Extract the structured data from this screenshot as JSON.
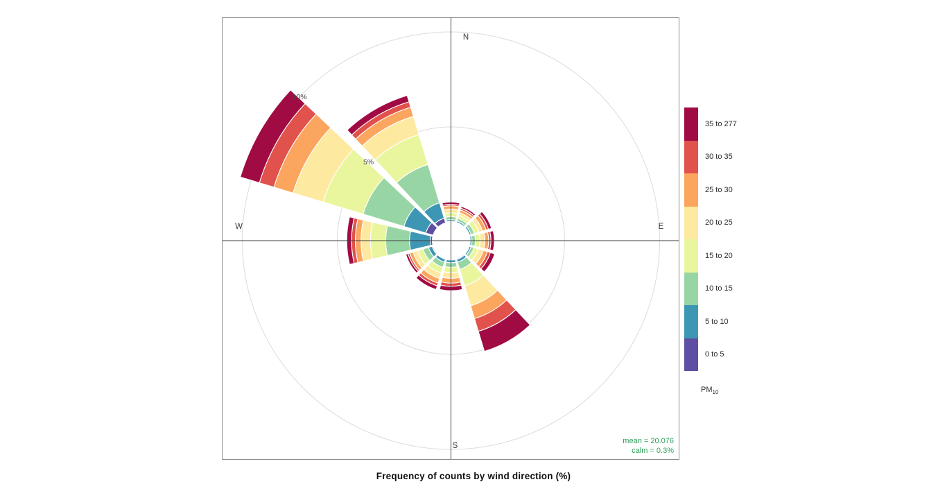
{
  "title": "Frequency of counts by wind direction (%)",
  "panel": {
    "compass_labels": {
      "n": "N",
      "e": "E",
      "s": "S",
      "w": "W"
    },
    "ring_labels": [
      "5%",
      "10%"
    ],
    "stats": {
      "mean_label": "mean = 20.076",
      "calm_label": "calm = 0.3%",
      "text_color": "#2da05c"
    }
  },
  "legend": {
    "title_main": "PM",
    "title_sub": "10",
    "entries_top_down": [
      {
        "label": "35 to 277",
        "color": "#a10b44"
      },
      {
        "label": "30 to 35",
        "color": "#e0524b"
      },
      {
        "label": "25 to 30",
        "color": "#fba55e"
      },
      {
        "label": "20 to 25",
        "color": "#fee9a0"
      },
      {
        "label": "15 to 20",
        "color": "#e9f69e"
      },
      {
        "label": "10 to 15",
        "color": "#98d5a4"
      },
      {
        "label": "5 to 10",
        "color": "#3e96b5"
      },
      {
        "label": "0 to 5",
        "color": "#5e4fa2"
      }
    ]
  },
  "chart_data": {
    "type": "windrose",
    "subtype": "stacked polar frequency rose (openair style)",
    "title": "Frequency of counts by wind direction (%)",
    "pollutant": "PM10",
    "units": "% frequency of counts by wind direction",
    "grid": {
      "rings_percent": [
        5,
        10
      ],
      "ring_label_bearing_deg": 313.5,
      "gridlines_on": true
    },
    "sector_width_deg": 30,
    "bins": [
      {
        "range": "0 to 5",
        "color": "#5e4fa2"
      },
      {
        "range": "5 to 10",
        "color": "#3e96b5"
      },
      {
        "range": "10 to 15",
        "color": "#98d5a4"
      },
      {
        "range": "15 to 20",
        "color": "#e9f69e"
      },
      {
        "range": "20 to 25",
        "color": "#fee9a0"
      },
      {
        "range": "25 to 30",
        "color": "#fba55e"
      },
      {
        "range": "30 to 35",
        "color": "#e0524b"
      },
      {
        "range": "35 to 277",
        "color": "#a10b44"
      }
    ],
    "sectors": [
      {
        "dir": "N",
        "bearing_deg": 0,
        "cum_percent": [
          0.03,
          0.12,
          0.28,
          0.48,
          0.68,
          0.85,
          0.93,
          1.05
        ]
      },
      {
        "dir": "NNE",
        "bearing_deg": 30,
        "cum_percent": [
          0.02,
          0.1,
          0.24,
          0.4,
          0.55,
          0.7,
          0.8,
          0.9
        ]
      },
      {
        "dir": "ENE",
        "bearing_deg": 60,
        "cum_percent": [
          0.03,
          0.12,
          0.3,
          0.55,
          0.75,
          0.95,
          1.08,
          1.25
        ]
      },
      {
        "dir": "E",
        "bearing_deg": 90,
        "cum_percent": [
          0.03,
          0.12,
          0.3,
          0.55,
          0.8,
          1.0,
          1.12,
          1.3
        ]
      },
      {
        "dir": "ESE",
        "bearing_deg": 120,
        "cum_percent": [
          0.03,
          0.12,
          0.28,
          0.52,
          0.8,
          1.02,
          1.18,
          1.42
        ]
      },
      {
        "dir": "SSE",
        "bearing_deg": 150,
        "cum_percent": [
          0.05,
          0.2,
          0.6,
          1.5,
          2.6,
          3.3,
          4.0,
          5.1
        ]
      },
      {
        "dir": "S",
        "bearing_deg": 180,
        "cum_percent": [
          0.04,
          0.18,
          0.42,
          0.7,
          1.0,
          1.25,
          1.42,
          1.65
        ]
      },
      {
        "dir": "SSW",
        "bearing_deg": 210,
        "cum_percent": [
          0.04,
          0.2,
          0.48,
          0.8,
          1.1,
          1.35,
          1.5,
          1.7
        ]
      },
      {
        "dir": "WSW",
        "bearing_deg": 240,
        "cum_percent": [
          0.05,
          0.25,
          0.55,
          0.85,
          1.1,
          1.28,
          1.38,
          1.5
        ]
      },
      {
        "dir": "W",
        "bearing_deg": 270,
        "cum_percent": [
          0.1,
          1.2,
          2.45,
          3.25,
          3.75,
          4.05,
          4.25,
          4.5
        ]
      },
      {
        "dir": "WNW",
        "bearing_deg": 300,
        "cum_percent": [
          0.4,
          1.6,
          3.85,
          6.05,
          7.7,
          8.75,
          9.55,
          10.6
        ]
      },
      {
        "dir": "NNW",
        "bearing_deg": 330,
        "cum_percent": [
          0.25,
          1.1,
          3.2,
          4.85,
          5.85,
          6.35,
          6.65,
          7.0
        ]
      }
    ],
    "stats": {
      "mean": 20.076,
      "calm_percent": 0.3
    },
    "legend_position": "right"
  }
}
